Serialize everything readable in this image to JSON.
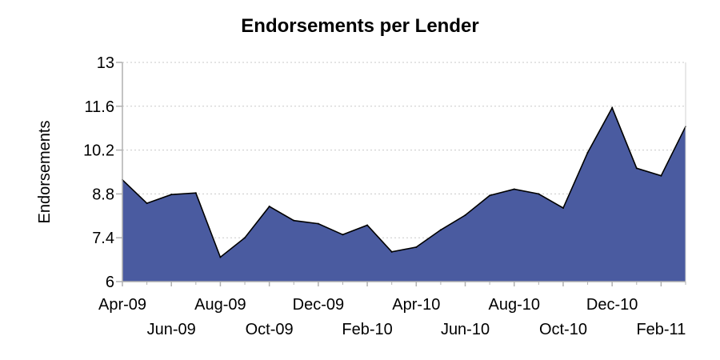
{
  "chart_data": {
    "type": "area",
    "title": "Endorsements per Lender",
    "ylabel": "Endorsements",
    "xlabel": "",
    "ylim": [
      6,
      13
    ],
    "yticks": [
      "6",
      "7.4",
      "8.8",
      "10.2",
      "11.6",
      "13"
    ],
    "ytick_values": [
      6,
      7.4,
      8.8,
      10.2,
      11.6,
      13
    ],
    "xtick_labels": [
      "Apr-09",
      "Jun-09",
      "Aug-09",
      "Oct-09",
      "Dec-09",
      "Feb-10",
      "Apr-10",
      "Jun-10",
      "Aug-10",
      "Oct-10",
      "Dec-10",
      "Feb-11"
    ],
    "x": [
      "Apr-09",
      "May-09",
      "Jun-09",
      "Jul-09",
      "Aug-09",
      "Sep-09",
      "Oct-09",
      "Nov-09",
      "Dec-09",
      "Jan-10",
      "Feb-10",
      "Mar-10",
      "Apr-10",
      "May-10",
      "Jun-10",
      "Jul-10",
      "Aug-10",
      "Sep-10",
      "Oct-10",
      "Nov-10",
      "Dec-10",
      "Jan-11",
      "Feb-11",
      "Mar-11"
    ],
    "values": [
      9.25,
      8.5,
      8.78,
      8.83,
      6.78,
      7.4,
      8.4,
      7.95,
      7.85,
      7.5,
      7.8,
      6.95,
      7.1,
      7.65,
      8.12,
      8.75,
      8.95,
      8.8,
      8.35,
      10.12,
      11.55,
      9.62,
      9.38,
      10.95
    ],
    "grid": "horizontal dotted",
    "fill_color": "#4a5ba0",
    "line_color": "#000000",
    "axis_color": "#b0b0b0"
  }
}
